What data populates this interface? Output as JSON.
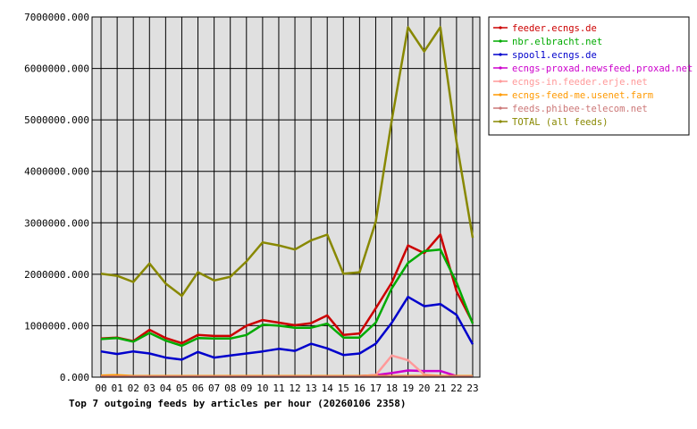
{
  "chart_data": {
    "type": "line",
    "title": "Top 7 outgoing feeds by articles per hour (20260106 2358)",
    "categories": [
      "00",
      "01",
      "02",
      "03",
      "04",
      "05",
      "06",
      "07",
      "08",
      "09",
      "10",
      "11",
      "12",
      "13",
      "14",
      "15",
      "16",
      "17",
      "18",
      "19",
      "20",
      "21",
      "22",
      "23"
    ],
    "y_ticks": [
      "0.000",
      "1000000.000",
      "2000000.000",
      "3000000.000",
      "4000000.000",
      "5000000.000",
      "6000000.000",
      "7000000.000"
    ],
    "ylim": [
      0,
      7000000
    ],
    "grid": true,
    "legend_position": "top-right",
    "plot_background": "#e0e0e0",
    "series": [
      {
        "name": "feeder.ecngs.de",
        "color": "#cc0000",
        "values": [
          750000,
          770000,
          700000,
          920000,
          760000,
          660000,
          820000,
          800000,
          800000,
          1000000,
          1110000,
          1060000,
          1010000,
          1050000,
          1200000,
          820000,
          850000,
          1340000,
          1840000,
          2560000,
          2410000,
          2770000,
          1670000,
          1060000
        ]
      },
      {
        "name": "nbr.elbracht.net",
        "color": "#00aa00",
        "values": [
          740000,
          760000,
          690000,
          860000,
          710000,
          610000,
          760000,
          750000,
          750000,
          820000,
          1020000,
          1000000,
          960000,
          960000,
          1040000,
          770000,
          770000,
          1060000,
          1730000,
          2220000,
          2450000,
          2480000,
          1840000,
          1040000
        ]
      },
      {
        "name": "spool1.ecngs.de",
        "color": "#0000cc",
        "values": [
          500000,
          450000,
          500000,
          460000,
          380000,
          340000,
          490000,
          380000,
          420000,
          460000,
          500000,
          550000,
          510000,
          650000,
          560000,
          430000,
          460000,
          650000,
          1060000,
          1560000,
          1380000,
          1420000,
          1210000,
          640000
        ]
      },
      {
        "name": "ecngs-proxad.newsfeed.proxad.net",
        "color": "#cc00cc",
        "values": [
          20000,
          20000,
          20000,
          20000,
          20000,
          20000,
          20000,
          20000,
          20000,
          20000,
          20000,
          20000,
          20000,
          20000,
          20000,
          20000,
          20000,
          40000,
          80000,
          130000,
          120000,
          120000,
          20000,
          20000
        ]
      },
      {
        "name": "ecngs-in.feeder.erje.net",
        "color": "#ff9999",
        "values": [
          20000,
          20000,
          20000,
          20000,
          20000,
          20000,
          20000,
          20000,
          20000,
          20000,
          20000,
          20000,
          20000,
          20000,
          20000,
          20000,
          20000,
          40000,
          420000,
          330000,
          50000,
          20000,
          20000,
          20000
        ]
      },
      {
        "name": "ecngs-feed-me.usenet.farm",
        "color": "#ff9900",
        "values": [
          30000,
          40000,
          20000,
          20000,
          20000,
          20000,
          20000,
          20000,
          20000,
          20000,
          20000,
          20000,
          20000,
          20000,
          20000,
          20000,
          20000,
          20000,
          20000,
          20000,
          20000,
          20000,
          20000,
          20000
        ]
      },
      {
        "name": "feeds.phibee-telecom.net",
        "color": "#cc7777",
        "values": [
          10000,
          10000,
          10000,
          10000,
          10000,
          10000,
          10000,
          10000,
          10000,
          10000,
          10000,
          10000,
          10000,
          10000,
          10000,
          10000,
          10000,
          10000,
          10000,
          10000,
          10000,
          10000,
          10000,
          10000
        ]
      },
      {
        "name": "TOTAL (all feeds)",
        "color": "#888800",
        "values": [
          2010000,
          1970000,
          1850000,
          2210000,
          1820000,
          1580000,
          2040000,
          1880000,
          1950000,
          2250000,
          2620000,
          2560000,
          2480000,
          2660000,
          2770000,
          2010000,
          2040000,
          3020000,
          5000000,
          6800000,
          6330000,
          6800000,
          4570000,
          2710000
        ]
      }
    ]
  }
}
